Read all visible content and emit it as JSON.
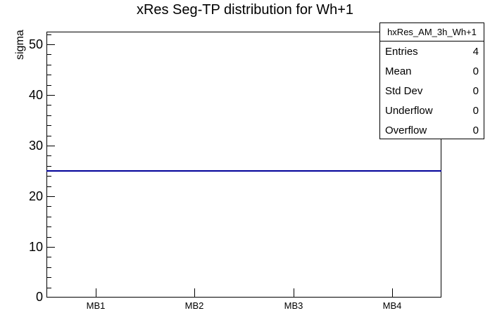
{
  "chart_data": {
    "type": "bar",
    "title": "xRes Seg-TP distribution for Wh+1",
    "xlabel": "",
    "ylabel": "sigma",
    "categories": [
      "MB1",
      "MB2",
      "MB3",
      "MB4"
    ],
    "values": [
      25,
      25,
      25,
      25
    ],
    "ylim": [
      0,
      52.5
    ],
    "y_major_ticks": [
      0,
      10,
      20,
      30,
      40,
      50
    ],
    "y_minor_step": 2,
    "grid": false,
    "legend_position": "none",
    "line_color": "#000099"
  },
  "stats": {
    "header": "hxRes_AM_3h_Wh+1",
    "rows": [
      {
        "label": "Entries",
        "value": "4"
      },
      {
        "label": "Mean",
        "value": "0"
      },
      {
        "label": "Std Dev",
        "value": "0"
      },
      {
        "label": "Underflow",
        "value": "0"
      },
      {
        "label": "Overflow",
        "value": "0"
      }
    ]
  },
  "colors": {
    "histogram_line": "#000099",
    "axis": "#000000",
    "text": "#000000",
    "background": "#ffffff"
  }
}
